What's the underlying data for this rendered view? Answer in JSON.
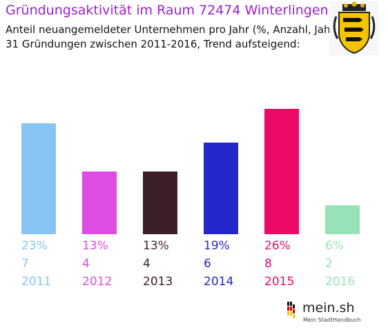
{
  "header": {
    "title": "Gründungsaktivität im Raum 72474 Winterlingen",
    "subtitle_line1": "Anteil neuangemeldeter Unternehmen pro Jahr (%, Anzahl, Jahr)",
    "subtitle_line2": "31 Gründungen zwischen 2011-2016, Trend aufsteigend:"
  },
  "branding": {
    "logo_text": "mein.sh",
    "logo_tagline": "Mein StadtHandbuch",
    "coat_of_arms_icon": "baden-wuerttemberg-coat-of-arms-icon"
  },
  "chart_data": {
    "type": "bar",
    "categories": [
      "2011",
      "2012",
      "2013",
      "2014",
      "2015",
      "2016"
    ],
    "series": [
      {
        "percent_labels": [
          "23%",
          "13%",
          "13%",
          "19%",
          "26%",
          "6%"
        ],
        "values": [
          23,
          13,
          13,
          19,
          26,
          6
        ],
        "counts": [
          7,
          4,
          4,
          6,
          8,
          2
        ]
      }
    ],
    "colors": [
      "#86c5f1",
      "#dd4de3",
      "#3d1f28",
      "#2427c9",
      "#ec0a66",
      "#97e3b8"
    ],
    "title": "",
    "xlabel": "",
    "ylabel": "",
    "grid": false,
    "legend": "none"
  }
}
